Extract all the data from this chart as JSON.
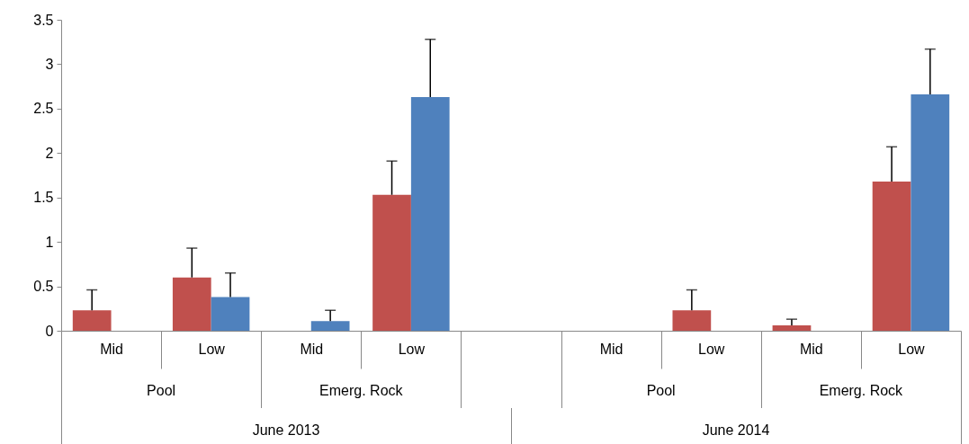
{
  "chart_data": {
    "type": "bar",
    "categories": [
      "Mid",
      "Low",
      "Mid",
      "Low",
      null,
      "Mid",
      "Low",
      "Mid",
      "Low"
    ],
    "series": [
      {
        "color": "#c0504d",
        "values": [
          0.23,
          0.6,
          0,
          1.53,
          null,
          0,
          0.23,
          0.06,
          1.68
        ],
        "errors": [
          0.23,
          0.33,
          null,
          0.38,
          null,
          null,
          0.23,
          0.07,
          0.39
        ]
      },
      {
        "color": "#4f81bd",
        "values": [
          0,
          0.38,
          0.11,
          2.63,
          null,
          0,
          0,
          0,
          2.66
        ],
        "errors": [
          null,
          0.27,
          0.12,
          0.65,
          null,
          null,
          null,
          null,
          0.51
        ]
      }
    ],
    "ylim": [
      0,
      3.5
    ],
    "yticks": [
      0,
      0.5,
      1,
      1.5,
      2,
      2.5,
      3,
      3.5
    ],
    "grid": false,
    "legend": false,
    "annotations": [
      "Pool",
      "Emerg. Rock",
      "Pool",
      "Emerg. Rock",
      "June 2013",
      "June 2014"
    ]
  }
}
